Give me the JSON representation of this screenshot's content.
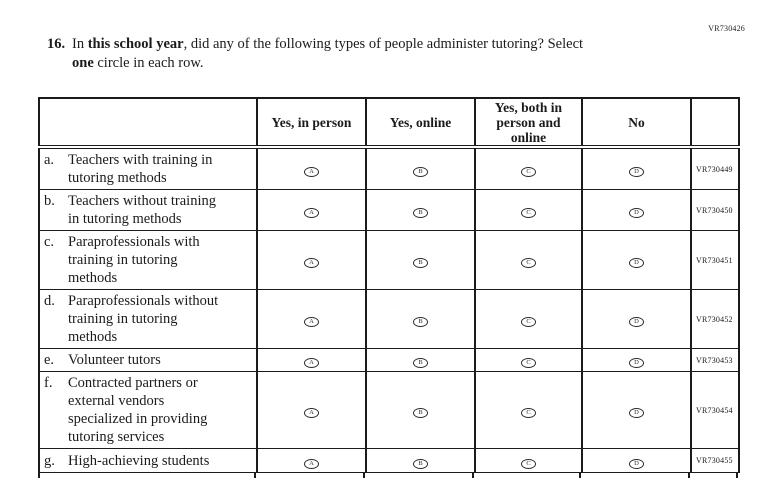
{
  "page": {
    "top_right_code": "VR730426"
  },
  "question": {
    "number": "16.",
    "lines": [
      [
        {
          "text": "In ",
          "bold": false
        },
        {
          "text": "this school year",
          "bold": true
        },
        {
          "text": ", did any of the following types of people administer tutoring? Select",
          "bold": false
        }
      ],
      [
        {
          "text": "one",
          "bold": true
        },
        {
          "text": " circle in each row.",
          "bold": false
        }
      ]
    ]
  },
  "table": {
    "headers": [
      {
        "id": "yes-in-person",
        "lines": [
          "Yes, in person"
        ]
      },
      {
        "id": "yes-online",
        "lines": [
          "Yes, online"
        ]
      },
      {
        "id": "yes-both",
        "lines": [
          "Yes, both in",
          "person and",
          "online"
        ]
      },
      {
        "id": "no",
        "lines": [
          "No"
        ]
      }
    ],
    "option_letters": [
      "A",
      "B",
      "C",
      "D"
    ],
    "rows": [
      {
        "letter": "a.",
        "label_lines": [
          "Teachers with training in",
          "tutoring methods"
        ],
        "code": "VR730449"
      },
      {
        "letter": "b.",
        "label_lines": [
          "Teachers without training",
          "in tutoring methods"
        ],
        "code": "VR730450"
      },
      {
        "letter": "c.",
        "label_lines": [
          "Paraprofessionals with",
          "training in tutoring",
          "methods"
        ],
        "code": "VR730451"
      },
      {
        "letter": "d.",
        "label_lines": [
          "Paraprofessionals without",
          "training in tutoring",
          "methods"
        ],
        "code": "VR730452"
      },
      {
        "letter": "e.",
        "label_lines": [
          "Volunteer tutors"
        ],
        "code": "VR730453"
      },
      {
        "letter": "f.",
        "label_lines": [
          "Contracted partners or",
          "external vendors",
          "specialized in providing",
          "tutoring services"
        ],
        "code": "VR730454"
      },
      {
        "letter": "g.",
        "label_lines": [
          "High-achieving students"
        ],
        "code": "VR730455"
      }
    ]
  },
  "colors": {
    "ink": "#1b1b1b",
    "paper": "#ffffff"
  }
}
